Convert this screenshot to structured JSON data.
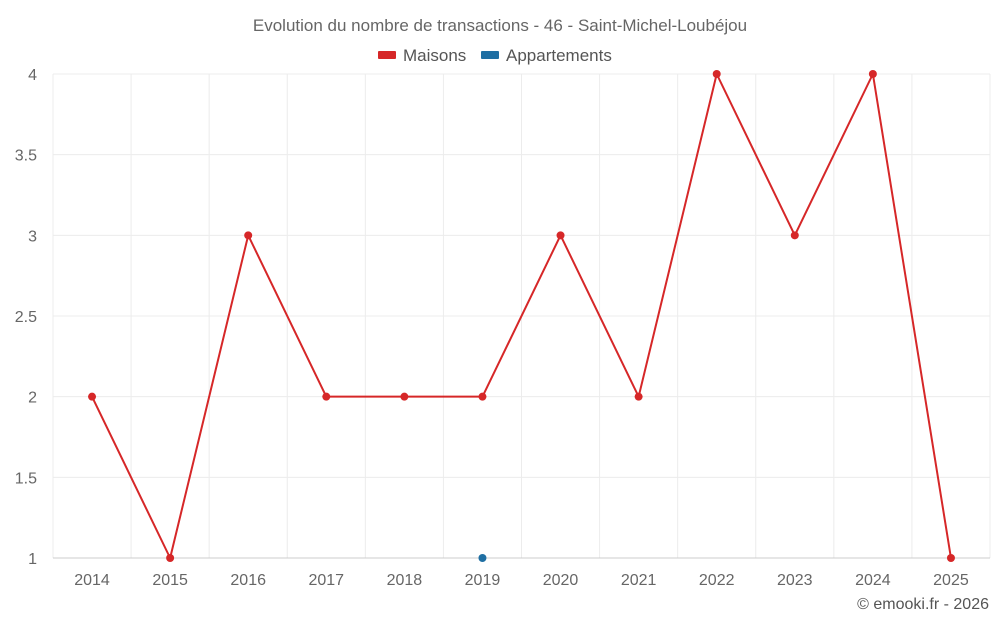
{
  "chart_data": {
    "type": "line",
    "title": "Evolution du nombre de transactions - 46 - Saint-Michel-Loubéjou",
    "x": [
      "2014",
      "2015",
      "2016",
      "2017",
      "2018",
      "2019",
      "2020",
      "2021",
      "2022",
      "2023",
      "2024",
      "2025"
    ],
    "series": [
      {
        "name": "Maisons",
        "color": "#d62728",
        "values": [
          2,
          1,
          3,
          2,
          2,
          2,
          3,
          2,
          4,
          3,
          4,
          1
        ]
      },
      {
        "name": "Appartements",
        "color": "#1f6fa3",
        "values": [
          null,
          null,
          null,
          null,
          null,
          1,
          null,
          null,
          null,
          null,
          null,
          null
        ]
      }
    ],
    "yticks": [
      "1",
      "1.5",
      "2",
      "2.5",
      "3",
      "3.5",
      "4"
    ],
    "ylim": [
      1,
      4
    ],
    "grid": true,
    "legend_position": "top-center"
  },
  "credit": "© emooki.fr - 2026"
}
